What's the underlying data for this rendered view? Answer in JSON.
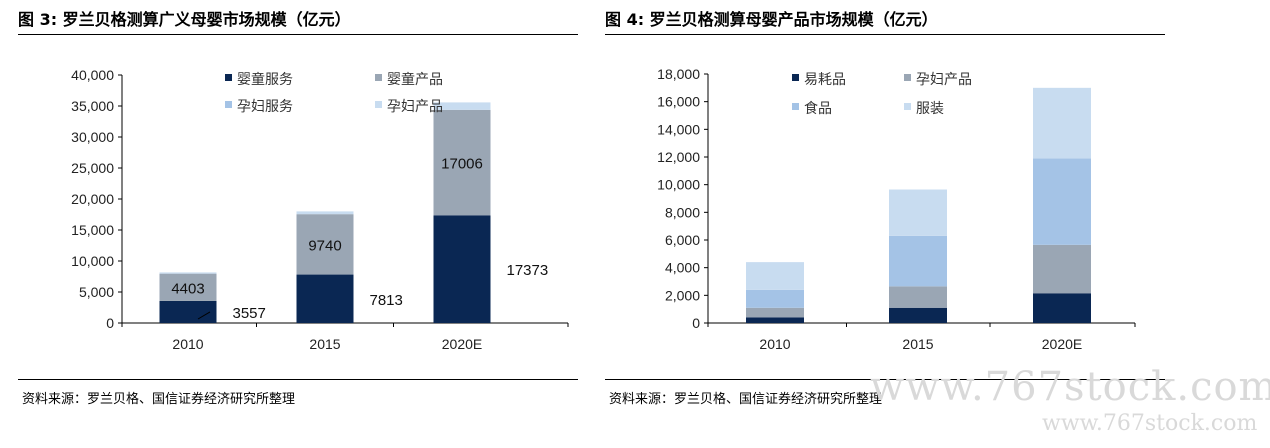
{
  "left": {
    "title": "图 3: 罗兰贝格测算广义母婴市场规模（亿元）",
    "source": "资料来源：罗兰贝格、国信证券经济研究所整理"
  },
  "right": {
    "title": "图 4: 罗兰贝格测算母婴产品市场规模（亿元）",
    "source": "资料来源：罗兰贝格、国信证券经济研究所整理"
  },
  "watermark": {
    "big": "www.767stock.com",
    "small": "www.767stock.com"
  },
  "chart_data": [
    {
      "type": "bar",
      "stacked": true,
      "categories": [
        "2010",
        "2015",
        "2020E"
      ],
      "series": [
        {
          "name": "婴童服务",
          "color": "#0a2753",
          "values": [
            3557,
            7813,
            17373
          ]
        },
        {
          "name": "婴童产品",
          "color": "#9aa6b4",
          "values": [
            4403,
            9740,
            17006
          ]
        },
        {
          "name": "孕妇服务",
          "color": "#a4c3e6",
          "values": [
            0,
            0,
            0
          ]
        },
        {
          "name": "孕妇产品",
          "color": "#c8dcf0",
          "values": [
            200,
            450,
            1200
          ]
        }
      ],
      "y_ticks": [
        "0",
        "5,000",
        "10,000",
        "15,000",
        "20,000",
        "25,000",
        "30,000",
        "35,000",
        "40,000"
      ],
      "ylim": [
        0,
        40000
      ],
      "data_labels": [
        {
          "text": "4403",
          "category": 0,
          "series": 1,
          "position": "inside"
        },
        {
          "text": "3557",
          "category": 0,
          "series": 0,
          "position": "outside-leader"
        },
        {
          "text": "9740",
          "category": 1,
          "series": 1,
          "position": "inside"
        },
        {
          "text": "7813",
          "category": 1,
          "series": 0,
          "position": "outside"
        },
        {
          "text": "17006",
          "category": 2,
          "series": 1,
          "position": "inside"
        },
        {
          "text": "17373",
          "category": 2,
          "series": 0,
          "position": "outside"
        }
      ],
      "legend": "top-left, inside",
      "grid": false
    },
    {
      "type": "bar",
      "stacked": true,
      "categories": [
        "2010",
        "2015",
        "2020E"
      ],
      "series": [
        {
          "name": "易耗品",
          "color": "#0a2753",
          "values": [
            400,
            1100,
            2150
          ]
        },
        {
          "name": "孕妇产品",
          "color": "#9aa6b4",
          "values": [
            700,
            1550,
            3500
          ]
        },
        {
          "name": "食品",
          "color": "#a4c3e6",
          "values": [
            1300,
            3650,
            6250
          ]
        },
        {
          "name": "服装",
          "color": "#c8dcf0",
          "values": [
            2000,
            3350,
            5100
          ]
        }
      ],
      "y_ticks": [
        "0",
        "2,000",
        "4,000",
        "6,000",
        "8,000",
        "10,000",
        "12,000",
        "14,000",
        "16,000",
        "18,000"
      ],
      "ylim": [
        0,
        18000
      ],
      "legend": "top-left, inside",
      "grid": false
    }
  ]
}
